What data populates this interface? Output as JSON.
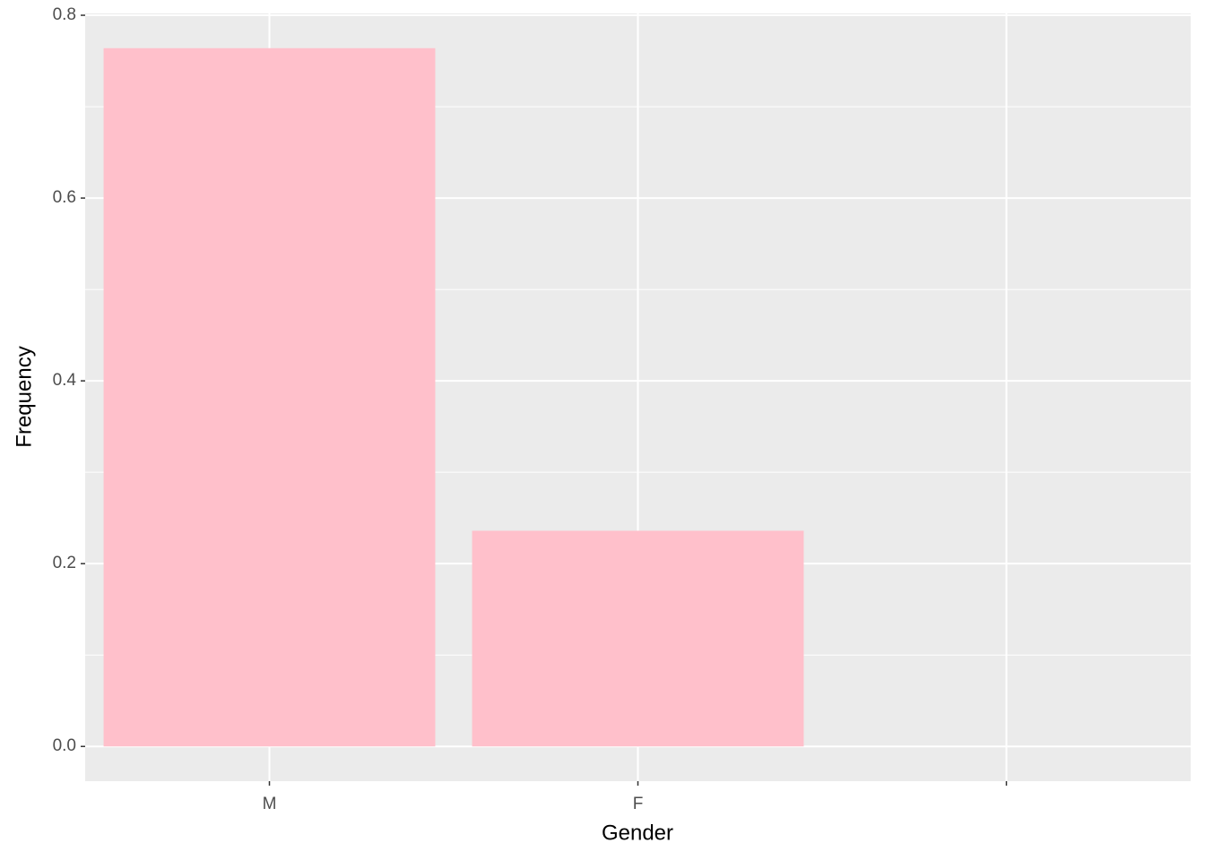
{
  "chart_data": {
    "type": "bar",
    "x_label": "Gender",
    "y_label": "Frequency",
    "categories": [
      "M",
      "F",
      null
    ],
    "values": [
      0.764,
      0.236,
      0
    ],
    "color": "#ffc0cb",
    "ylim": [
      -0.038,
      0.802
    ],
    "yticks": [
      {
        "value": 0,
        "label": "0.0"
      },
      0.2,
      0.4,
      0.6,
      0.8
    ],
    "grid": true
  }
}
